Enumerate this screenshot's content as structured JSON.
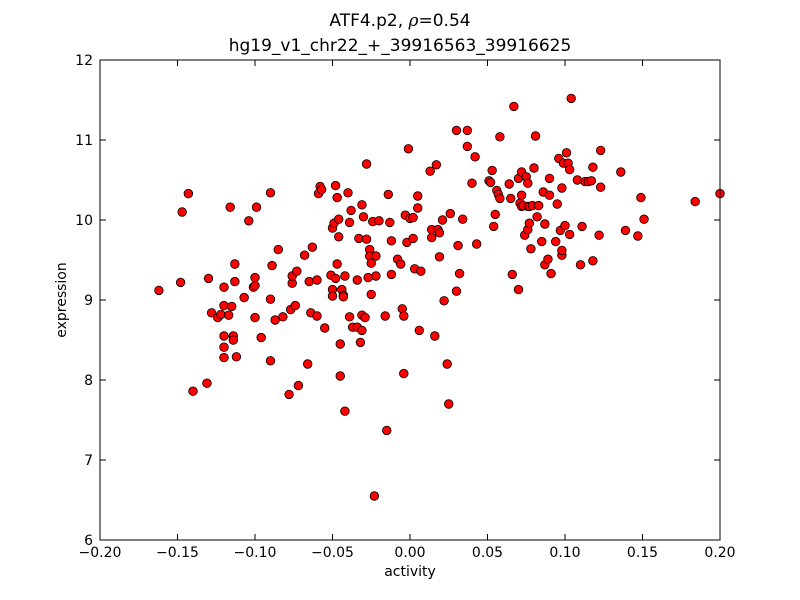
{
  "chart_data": {
    "type": "scatter",
    "title": {
      "name": "ATF4.p2,",
      "rho_symbol": "ρ",
      "rho_value": "=0.54",
      "subtitle": "hg19_v1_chr22_+_39916563_39916625"
    },
    "xlabel": "activity",
    "ylabel": "expression",
    "xlim": [
      -0.2,
      0.2
    ],
    "ylim": [
      6,
      12
    ],
    "xticks": [
      "−0.20",
      "−0.15",
      "−0.10",
      "−0.05",
      "0.00",
      "0.05",
      "0.10",
      "0.15",
      "0.20"
    ],
    "yticks": [
      "6",
      "7",
      "8",
      "9",
      "10",
      "11",
      "12"
    ],
    "grid": false,
    "point_color": "#ff0000",
    "point_edge_color": "#000000",
    "points": [
      [
        -0.162,
        9.12
      ],
      [
        -0.148,
        9.22
      ],
      [
        -0.147,
        10.1
      ],
      [
        -0.143,
        10.33
      ],
      [
        -0.14,
        7.86
      ],
      [
        -0.131,
        7.96
      ],
      [
        -0.13,
        9.27
      ],
      [
        -0.128,
        8.84
      ],
      [
        -0.124,
        8.78
      ],
      [
        -0.122,
        8.82
      ],
      [
        -0.12,
        8.93
      ],
      [
        -0.12,
        9.16
      ],
      [
        -0.12,
        8.55
      ],
      [
        -0.12,
        8.41
      ],
      [
        -0.12,
        8.28
      ],
      [
        -0.117,
        8.81
      ],
      [
        -0.116,
        10.16
      ],
      [
        -0.115,
        8.92
      ],
      [
        -0.114,
        8.55
      ],
      [
        -0.114,
        8.5
      ],
      [
        -0.113,
        9.23
      ],
      [
        -0.113,
        9.45
      ],
      [
        -0.112,
        8.29
      ],
      [
        -0.107,
        9.03
      ],
      [
        -0.104,
        9.99
      ],
      [
        -0.101,
        9.16
      ],
      [
        -0.1,
        9.18
      ],
      [
        -0.1,
        9.28
      ],
      [
        -0.1,
        8.78
      ],
      [
        -0.099,
        10.16
      ],
      [
        -0.096,
        8.53
      ],
      [
        -0.09,
        10.34
      ],
      [
        -0.09,
        9.01
      ],
      [
        -0.09,
        8.24
      ],
      [
        -0.089,
        9.43
      ],
      [
        -0.087,
        8.75
      ],
      [
        -0.085,
        9.63
      ],
      [
        -0.082,
        8.79
      ],
      [
        -0.078,
        7.82
      ],
      [
        -0.077,
        8.88
      ],
      [
        -0.076,
        9.21
      ],
      [
        -0.076,
        9.3
      ],
      [
        -0.074,
        8.93
      ],
      [
        -0.073,
        9.36
      ],
      [
        -0.072,
        7.93
      ],
      [
        -0.068,
        9.56
      ],
      [
        -0.066,
        8.2
      ],
      [
        -0.065,
        9.23
      ],
      [
        -0.064,
        8.84
      ],
      [
        -0.063,
        9.66
      ],
      [
        -0.06,
        9.25
      ],
      [
        -0.06,
        8.8
      ],
      [
        -0.059,
        10.33
      ],
      [
        -0.058,
        10.42
      ],
      [
        -0.057,
        10.38
      ],
      [
        -0.055,
        8.65
      ],
      [
        -0.051,
        9.31
      ],
      [
        -0.05,
        9.9
      ],
      [
        -0.05,
        9.13
      ],
      [
        -0.05,
        9.05
      ],
      [
        -0.049,
        9.96
      ],
      [
        -0.048,
        10.43
      ],
      [
        -0.048,
        9.27
      ],
      [
        -0.047,
        10.28
      ],
      [
        -0.047,
        9.45
      ],
      [
        -0.046,
        9.79
      ],
      [
        -0.046,
        10.01
      ],
      [
        -0.045,
        8.45
      ],
      [
        -0.045,
        8.05
      ],
      [
        -0.044,
        9.13
      ],
      [
        -0.043,
        9.06
      ],
      [
        -0.043,
        9.04
      ],
      [
        -0.042,
        9.3
      ],
      [
        -0.042,
        7.61
      ],
      [
        -0.04,
        10.34
      ],
      [
        -0.039,
        8.79
      ],
      [
        -0.039,
        9.97
      ],
      [
        -0.038,
        10.12
      ],
      [
        -0.037,
        8.66
      ],
      [
        -0.034,
        8.66
      ],
      [
        -0.034,
        9.25
      ],
      [
        -0.033,
        9.77
      ],
      [
        -0.032,
        8.47
      ],
      [
        -0.031,
        10.19
      ],
      [
        -0.031,
        8.81
      ],
      [
        -0.031,
        8.62
      ],
      [
        -0.03,
        10.04
      ],
      [
        -0.029,
        8.78
      ],
      [
        -0.028,
        10.7
      ],
      [
        -0.028,
        9.76
      ],
      [
        -0.027,
        9.28
      ],
      [
        -0.026,
        9.63
      ],
      [
        -0.026,
        9.55
      ],
      [
        -0.025,
        9.07
      ],
      [
        -0.025,
        9.46
      ],
      [
        -0.024,
        9.98
      ],
      [
        -0.023,
        6.55
      ],
      [
        -0.022,
        9.3
      ],
      [
        -0.022,
        9.55
      ],
      [
        -0.02,
        9.99
      ],
      [
        -0.016,
        8.8
      ],
      [
        -0.015,
        7.37
      ],
      [
        -0.014,
        10.32
      ],
      [
        -0.013,
        9.97
      ],
      [
        -0.012,
        9.32
      ],
      [
        -0.012,
        9.74
      ],
      [
        -0.008,
        9.51
      ],
      [
        -0.006,
        9.45
      ],
      [
        -0.005,
        8.89
      ],
      [
        -0.004,
        8.8
      ],
      [
        -0.004,
        8.08
      ],
      [
        -0.003,
        10.06
      ],
      [
        -0.002,
        9.72
      ],
      [
        -0.001,
        10.89
      ],
      [
        0.0,
        10.02
      ],
      [
        0.002,
        10.03
      ],
      [
        0.002,
        9.77
      ],
      [
        0.003,
        9.39
      ],
      [
        0.005,
        10.3
      ],
      [
        0.005,
        10.15
      ],
      [
        0.006,
        8.62
      ],
      [
        0.007,
        9.36
      ],
      [
        0.013,
        10.61
      ],
      [
        0.014,
        9.78
      ],
      [
        0.014,
        9.88
      ],
      [
        0.016,
        8.55
      ],
      [
        0.017,
        10.69
      ],
      [
        0.018,
        9.88
      ],
      [
        0.019,
        9.84
      ],
      [
        0.019,
        9.54
      ],
      [
        0.021,
        10.0
      ],
      [
        0.022,
        8.99
      ],
      [
        0.024,
        8.2
      ],
      [
        0.025,
        7.7
      ],
      [
        0.026,
        10.08
      ],
      [
        0.03,
        11.12
      ],
      [
        0.03,
        9.11
      ],
      [
        0.031,
        9.68
      ],
      [
        0.032,
        9.33
      ],
      [
        0.034,
        10.01
      ],
      [
        0.037,
        11.12
      ],
      [
        0.037,
        10.92
      ],
      [
        0.04,
        10.46
      ],
      [
        0.042,
        10.79
      ],
      [
        0.043,
        9.7
      ],
      [
        0.051,
        10.49
      ],
      [
        0.052,
        10.47
      ],
      [
        0.053,
        10.62
      ],
      [
        0.054,
        9.92
      ],
      [
        0.055,
        10.07
      ],
      [
        0.056,
        10.37
      ],
      [
        0.057,
        10.32
      ],
      [
        0.058,
        11.04
      ],
      [
        0.058,
        10.27
      ],
      [
        0.064,
        10.45
      ],
      [
        0.065,
        10.27
      ],
      [
        0.066,
        9.32
      ],
      [
        0.067,
        11.42
      ],
      [
        0.07,
        10.52
      ],
      [
        0.07,
        9.13
      ],
      [
        0.071,
        10.21
      ],
      [
        0.072,
        10.31
      ],
      [
        0.072,
        10.17
      ],
      [
        0.072,
        10.6
      ],
      [
        0.073,
        10.18
      ],
      [
        0.074,
        9.81
      ],
      [
        0.075,
        10.54
      ],
      [
        0.076,
        10.46
      ],
      [
        0.076,
        10.17
      ],
      [
        0.076,
        9.88
      ],
      [
        0.077,
        10.17
      ],
      [
        0.077,
        9.96
      ],
      [
        0.078,
        9.64
      ],
      [
        0.079,
        10.18
      ],
      [
        0.08,
        10.65
      ],
      [
        0.081,
        11.05
      ],
      [
        0.082,
        10.04
      ],
      [
        0.083,
        10.18
      ],
      [
        0.085,
        9.73
      ],
      [
        0.086,
        10.35
      ],
      [
        0.087,
        9.95
      ],
      [
        0.087,
        9.44
      ],
      [
        0.089,
        9.51
      ],
      [
        0.09,
        10.31
      ],
      [
        0.09,
        10.52
      ],
      [
        0.091,
        9.33
      ],
      [
        0.094,
        9.73
      ],
      [
        0.095,
        10.2
      ],
      [
        0.096,
        10.77
      ],
      [
        0.097,
        9.87
      ],
      [
        0.098,
        10.4
      ],
      [
        0.098,
        9.56
      ],
      [
        0.098,
        9.62
      ],
      [
        0.099,
        10.71
      ],
      [
        0.1,
        9.93
      ],
      [
        0.101,
        10.84
      ],
      [
        0.102,
        10.71
      ],
      [
        0.103,
        10.63
      ],
      [
        0.103,
        9.82
      ],
      [
        0.104,
        11.52
      ],
      [
        0.108,
        10.5
      ],
      [
        0.11,
        9.44
      ],
      [
        0.111,
        9.92
      ],
      [
        0.113,
        10.48
      ],
      [
        0.115,
        10.48
      ],
      [
        0.117,
        10.49
      ],
      [
        0.118,
        9.49
      ],
      [
        0.118,
        10.66
      ],
      [
        0.122,
        9.81
      ],
      [
        0.123,
        10.87
      ],
      [
        0.123,
        10.41
      ],
      [
        0.136,
        10.6
      ],
      [
        0.139,
        9.87
      ],
      [
        0.147,
        9.8
      ],
      [
        0.149,
        10.28
      ],
      [
        0.151,
        10.01
      ],
      [
        0.184,
        10.23
      ],
      [
        0.2,
        10.33
      ]
    ]
  }
}
